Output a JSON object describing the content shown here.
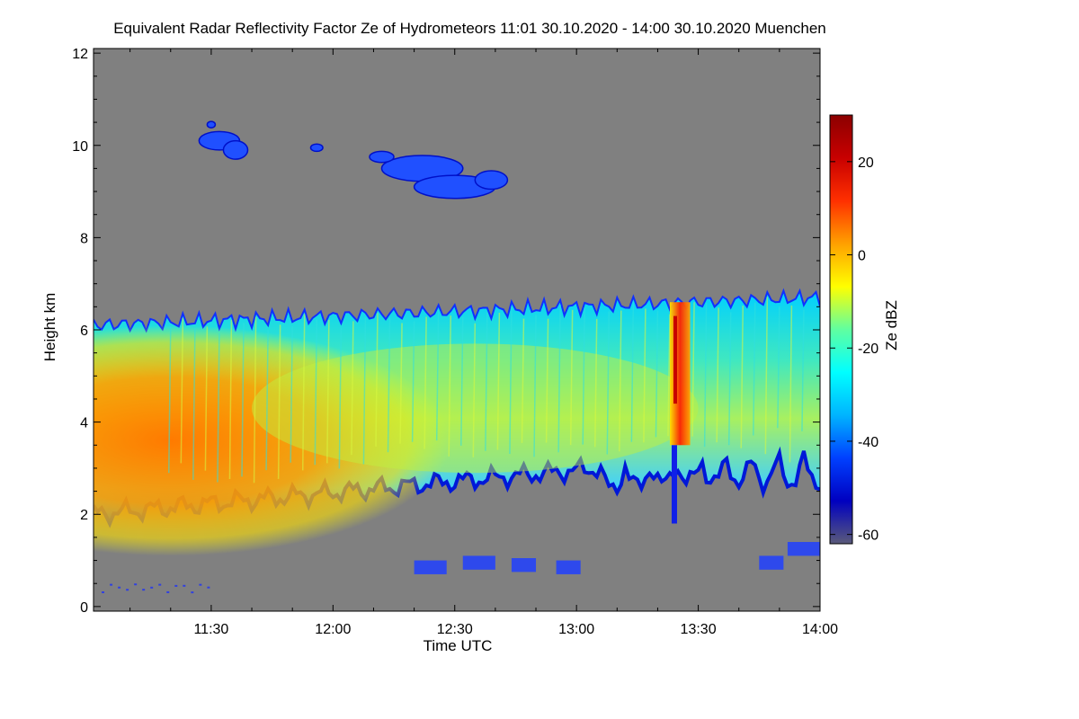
{
  "chart_data": {
    "type": "heatmap",
    "title": "Equivalent Radar Reflectivity Factor Ze of Hydrometeors   11:01 30.10.2020 - 14:00 30.10.2020 Muenchen",
    "xlabel": "Time UTC",
    "ylabel": "Height km",
    "x_ticks": [
      "11:30",
      "12:00",
      "12:30",
      "13:00",
      "13:30",
      "14:00"
    ],
    "x_tick_minutes": [
      30,
      60,
      90,
      120,
      150,
      180
    ],
    "x_range_minutes": [
      1,
      180
    ],
    "y_ticks": [
      0,
      2,
      4,
      6,
      8,
      10,
      12
    ],
    "ylim": [
      -0.1,
      12.1
    ],
    "colorbar": {
      "label": "Ze dBZ",
      "ticks": [
        20,
        0,
        -20,
        -40,
        -60
      ],
      "range": [
        -62,
        30
      ],
      "colors": [
        "#5a5a7a",
        "#0000c0",
        "#0040ff",
        "#00b4ff",
        "#00ffff",
        "#60ffa0",
        "#ffff00",
        "#ffa000",
        "#ff3000",
        "#c80000",
        "#8c0000"
      ]
    },
    "background_color": "#808080",
    "features": [
      {
        "name": "main stratiform layer",
        "t_start": 1,
        "t_end": 180,
        "base_km": [
          2.0,
          3.2
        ],
        "top_km": [
          6.1,
          6.7
        ],
        "ze_dbz": [
          -40,
          10
        ]
      },
      {
        "name": "high cirrus",
        "t_start": 20,
        "t_end": 105,
        "base_km": 8.8,
        "top_km": 10.5,
        "ze_dbz": [
          -45,
          -30
        ]
      },
      {
        "name": "convective core",
        "t_start": 143,
        "t_end": 148,
        "base_km": 3.5,
        "top_km": 6.6,
        "ze_dbz": [
          0,
          25
        ]
      },
      {
        "name": "low clutter",
        "t_start": 1,
        "t_end": 180,
        "base_km": 0.0,
        "top_km": 1.4,
        "ze_dbz": [
          -45,
          -25
        ]
      }
    ]
  }
}
